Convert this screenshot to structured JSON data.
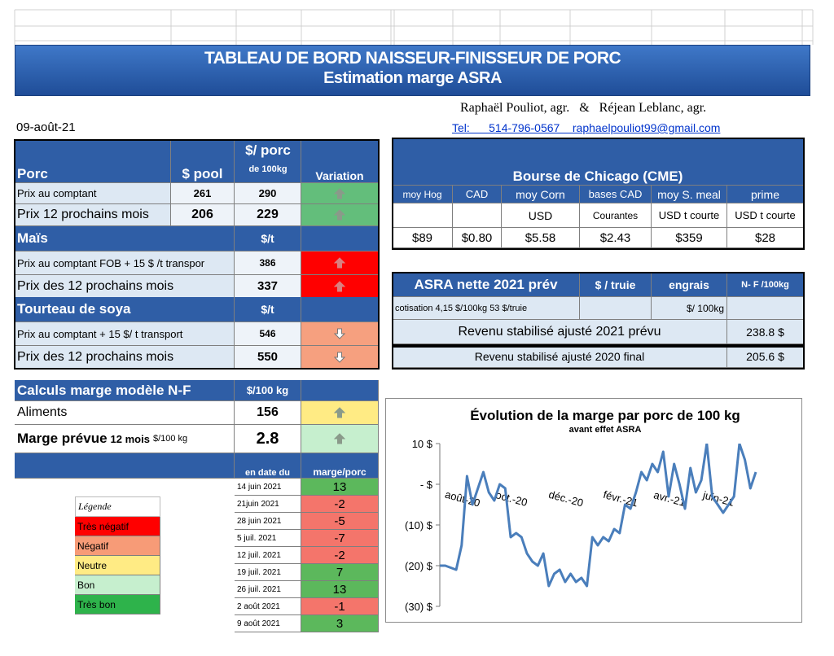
{
  "header": {
    "title": "TABLEAU DE BORD NAISSEUR-FINISSEUR  DE PORC",
    "subtitle": "Estimation marge ASRA",
    "authors": "Raphaël Pouliot, agr.   &   Réjean Leblanc, agr.",
    "date": "09-août-21",
    "contact": "Tel:      514-796-0567    raphaelpouliot99@gmail.com"
  },
  "porc": {
    "title": "Porc",
    "col_pool": "$ pool",
    "col_porc": "$/ porc",
    "col_porc_unit": "de 100kg",
    "col_variation": "Variation",
    "rows": [
      {
        "label": "Prix au comptant",
        "pool": 261,
        "porc": 290
      },
      {
        "label": "Prix 12 prochains mois",
        "pool": 206,
        "porc": 229
      }
    ]
  },
  "mais": {
    "title": "Maïs",
    "unit": "$/t",
    "rows": [
      {
        "label": "Prix au comptant  FOB + 15 $ /t transpor",
        "value": 386
      },
      {
        "label": "Prix des 12 prochains mois",
        "value": 337
      }
    ]
  },
  "soya": {
    "title": "Tourteau de soya",
    "unit": "$/t",
    "rows": [
      {
        "label": "Prix au comptant  + 15 $/ t  transport",
        "value": 546
      },
      {
        "label": "Prix des 12 prochains mois",
        "value": 550
      }
    ]
  },
  "cme": {
    "title": "Bourse de Chicago (CME)",
    "columns": [
      {
        "name": "moy Hog",
        "value": "$89"
      },
      {
        "name": "CAD",
        "value": "$0.80"
      },
      {
        "name": "moy Corn",
        "unit": "USD",
        "value": "$5.58"
      },
      {
        "name": "bases CAD",
        "unit": "Courantes",
        "value": "$2.43"
      },
      {
        "name": "moy S. meal",
        "unit": "USD t courte",
        "value": "$359"
      },
      {
        "name": "prime",
        "unit": "USD t courte",
        "value": "$28"
      }
    ]
  },
  "asra": {
    "title": "ASRA nette 2021 prév",
    "col_truie": "$ / truie",
    "col_engrais": "engrais",
    "col_nf": "N- F /100kg",
    "cotisation": "cotisation 4,15 $/100kg  53 $/truie",
    "engrais_unit": "$/ 100kg",
    "rows": [
      {
        "label": "Revenu stabilisé ajusté 2021 prévu",
        "value": "238.8 $"
      },
      {
        "label": "Revenu stabilisé ajusté 2020 final",
        "value": "205.6 $"
      }
    ]
  },
  "calculs": {
    "title": "Calculs marge  modèle N-F",
    "unit": "$/100 kg",
    "aliments_label": "Aliments",
    "aliments": 156,
    "marge_label": "Marge prévue",
    "marge_period": "12 mois",
    "marge_unit": "$/100 kg",
    "marge": 2.8,
    "col_date": "en date du",
    "col_marge": "marge/porc",
    "history": [
      {
        "date": "14 juin 2021",
        "value": 13
      },
      {
        "date": "21juin 2021",
        "value": -2
      },
      {
        "date": "28 juin 2021",
        "value": -5
      },
      {
        "date": "5 juil. 2021",
        "value": -7
      },
      {
        "date": "12 juil. 2021",
        "value": -2
      },
      {
        "date": "19 juil. 2021",
        "value": 7
      },
      {
        "date": "26 juil. 2021",
        "value": 13
      },
      {
        "date": "2 août 2021",
        "value": -1
      },
      {
        "date": "9 août 2021",
        "value": 3
      }
    ]
  },
  "legend": {
    "title": "Légende",
    "items": [
      "Très négatif",
      "Négatif",
      "Neutre",
      "Bon",
      "Très bon"
    ]
  },
  "margin_chart": {
    "type": "line",
    "title": "Évolution de la marge par porc de 100 kg",
    "subtitle": "avant effet ASRA",
    "color": "#4a7ebb",
    "categories": [
      null,
      null,
      null,
      null,
      "août-20",
      null,
      null,
      null,
      null,
      null,
      null,
      null,
      null,
      "oct.-20",
      null,
      null,
      null,
      null,
      null,
      null,
      null,
      null,
      null,
      "déc.-20",
      null,
      null,
      null,
      null,
      null,
      null,
      null,
      null,
      null,
      "févr.-21",
      null,
      null,
      null,
      null,
      null,
      null,
      null,
      null,
      "avr.-21",
      null,
      null,
      null,
      null,
      null,
      null,
      null,
      null,
      "juin-21",
      null,
      null,
      null,
      null,
      null,
      null,
      null
    ],
    "values": [
      -20,
      -20,
      -20.5,
      -21,
      -15,
      2,
      -5,
      -1,
      3,
      -2,
      -4,
      0,
      -1,
      -13,
      -12,
      -13,
      -17,
      -19,
      -20,
      -17,
      -25,
      -22,
      -21,
      -24,
      -22,
      -24,
      -23,
      -25,
      -13,
      -15,
      -13,
      -14,
      -11,
      -12,
      -5,
      -6,
      -2,
      3,
      1,
      5,
      3,
      8,
      -3,
      5,
      0,
      -6,
      4,
      -2,
      1,
      10,
      -3,
      -5,
      -7,
      -5,
      -3,
      10,
      6,
      -1,
      3
    ],
    "ylim": [
      -30,
      10
    ],
    "yticks": [
      {
        "value": -30,
        "label": "(30) $"
      },
      {
        "value": -20,
        "label": "(20) $"
      },
      {
        "value": -10,
        "label": "(10) $"
      },
      {
        "value": 0,
        "label": "-    $"
      },
      {
        "value": 10,
        "label": "10 $"
      }
    ]
  }
}
